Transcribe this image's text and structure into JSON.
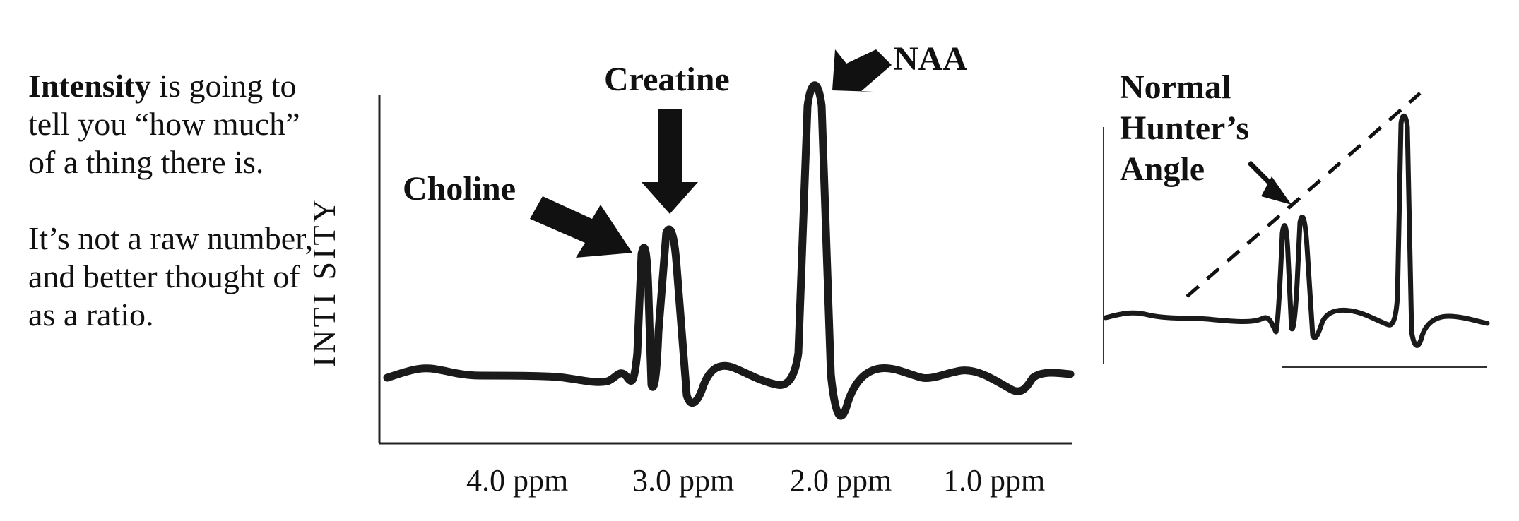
{
  "description_text": {
    "intensity_bold": "Intensity",
    "intensity_rest": " is going to tell you “how much” of a thing there is.",
    "ratio_text": "It’s not a raw number, and better thought of as a ratio."
  },
  "main_spectrum": {
    "y_axis_label": "INTI SITY",
    "peaks": {
      "choline": "Choline",
      "creatine": "Creatine",
      "naa": "NAA"
    },
    "x_ticks": [
      "4.0 ppm",
      "3.0 ppm",
      "2.0 ppm",
      "1.0 ppm"
    ]
  },
  "inset_spectrum": {
    "label_line1": "Normal",
    "label_line2": "Hunter’s",
    "label_line3": "Angle"
  },
  "colors": {
    "ink": "#1a1a1a"
  }
}
